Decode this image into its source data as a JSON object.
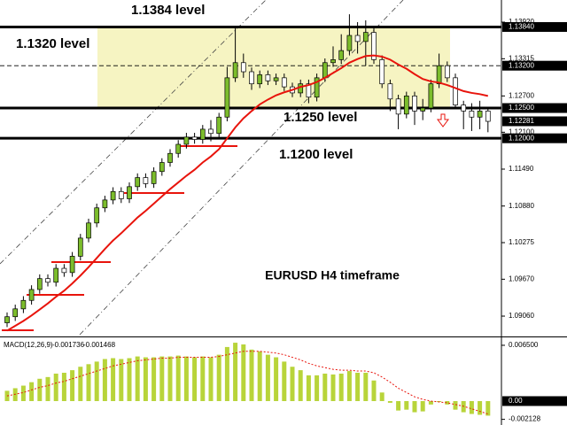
{
  "chart_data": [
    {
      "type": "candlestick",
      "title": "EURUSD H4 timeframe",
      "up_color": "#7cbd2c",
      "down_color": "#ffffff",
      "ma_color": "#e8140c",
      "zone_color": "#f6f4c2",
      "ylim": [
        1.08753,
        1.14286
      ],
      "yticks": [
        {
          "value": 1.1392,
          "label": "1.13920"
        },
        {
          "value": 1.13315,
          "label": "1.13315"
        },
        {
          "value": 1.127,
          "label": "1.12700"
        },
        {
          "value": 1.121,
          "label": "1.12100"
        },
        {
          "value": 1.1149,
          "label": "1.11490"
        },
        {
          "value": 1.1088,
          "label": "1.10880"
        },
        {
          "value": 1.10275,
          "label": "1.10275"
        },
        {
          "value": 1.0967,
          "label": "1.09670"
        },
        {
          "value": 1.0906,
          "label": "1.09060"
        }
      ],
      "price_markers": [
        {
          "value": 1.1384,
          "label": "1.13840"
        },
        {
          "value": 1.132,
          "label": "1.13200"
        },
        {
          "value": 1.125,
          "label": "1.12500"
        },
        {
          "value": 1.12281,
          "label": "1.12281"
        },
        {
          "value": 1.12,
          "label": "1.12000"
        }
      ],
      "levels": [
        {
          "value": 1.1384,
          "label": "1.1384 level",
          "style": "solid"
        },
        {
          "value": 1.132,
          "label": "1.1320 level",
          "style": "dashed"
        },
        {
          "value": 1.125,
          "label": "1.1250 level",
          "style": "solid"
        },
        {
          "value": 1.12,
          "label": "1.1200 level",
          "style": "solid"
        }
      ],
      "ohlc": [
        [
          1.0895,
          1.0912,
          1.0888,
          1.0905
        ],
        [
          1.0905,
          1.0925,
          1.0898,
          1.0918
        ],
        [
          1.0918,
          1.0939,
          1.0911,
          1.0932
        ],
        [
          1.0932,
          1.0957,
          1.0925,
          1.095
        ],
        [
          1.095,
          1.0975,
          1.0943,
          1.0968
        ],
        [
          1.0968,
          1.0975,
          1.0955,
          1.0962
        ],
        [
          1.0962,
          1.0992,
          1.0955,
          1.0985
        ],
        [
          1.0985,
          1.0992,
          1.0971,
          1.0978
        ],
        [
          1.0978,
          1.1012,
          1.0971,
          1.1005
        ],
        [
          1.1005,
          1.1042,
          1.0998,
          1.1035
        ],
        [
          1.1035,
          1.1067,
          1.1028,
          1.106
        ],
        [
          1.106,
          1.1092,
          1.1053,
          1.1085
        ],
        [
          1.1085,
          1.1105,
          1.1078,
          1.1098
        ],
        [
          1.1098,
          1.1119,
          1.1091,
          1.1112
        ],
        [
          1.1112,
          1.1119,
          1.1093,
          1.11
        ],
        [
          1.11,
          1.1127,
          1.1093,
          1.112
        ],
        [
          1.112,
          1.1142,
          1.1113,
          1.1135
        ],
        [
          1.1135,
          1.1142,
          1.1118,
          1.1125
        ],
        [
          1.1125,
          1.1152,
          1.1118,
          1.1145
        ],
        [
          1.1145,
          1.1167,
          1.1138,
          1.116
        ],
        [
          1.116,
          1.1182,
          1.1153,
          1.1175
        ],
        [
          1.1175,
          1.1197,
          1.1168,
          1.119
        ],
        [
          1.119,
          1.1209,
          1.1183,
          1.1202
        ],
        [
          1.1202,
          1.1209,
          1.1191,
          1.1198
        ],
        [
          1.1198,
          1.1222,
          1.1191,
          1.1215
        ],
        [
          1.1215,
          1.123,
          1.1195,
          1.1208
        ],
        [
          1.1208,
          1.1242,
          1.1201,
          1.1235
        ],
        [
          1.1235,
          1.1318,
          1.1228,
          1.13
        ],
        [
          1.13,
          1.1384,
          1.1293,
          1.1325
        ],
        [
          1.1325,
          1.134,
          1.13,
          1.131
        ],
        [
          1.131,
          1.1317,
          1.128,
          1.129
        ],
        [
          1.129,
          1.1312,
          1.1283,
          1.1305
        ],
        [
          1.1305,
          1.1312,
          1.1288,
          1.1295
        ],
        [
          1.1295,
          1.1307,
          1.1288,
          1.13
        ],
        [
          1.13,
          1.1307,
          1.1278,
          1.1285
        ],
        [
          1.1285,
          1.1292,
          1.1268,
          1.1275
        ],
        [
          1.1275,
          1.1297,
          1.1268,
          1.129
        ],
        [
          1.129,
          1.1297,
          1.1258,
          1.1268
        ],
        [
          1.1268,
          1.1307,
          1.1261,
          1.13
        ],
        [
          1.13,
          1.1332,
          1.1293,
          1.1325
        ],
        [
          1.1325,
          1.1352,
          1.1318,
          1.133
        ],
        [
          1.133,
          1.1372,
          1.1323,
          1.1345
        ],
        [
          1.1345,
          1.1405,
          1.1338,
          1.137
        ],
        [
          1.137,
          1.1392,
          1.134,
          1.136
        ],
        [
          1.136,
          1.1395,
          1.132,
          1.1375
        ],
        [
          1.1375,
          1.1382,
          1.1323,
          1.133
        ],
        [
          1.133,
          1.1337,
          1.1283,
          1.129
        ],
        [
          1.129,
          1.1297,
          1.1245,
          1.1265
        ],
        [
          1.1265,
          1.1272,
          1.1215,
          1.124
        ],
        [
          1.124,
          1.1277,
          1.1233,
          1.127
        ],
        [
          1.127,
          1.1277,
          1.1222,
          1.1245
        ],
        [
          1.1245,
          1.1265,
          1.123,
          1.125
        ],
        [
          1.125,
          1.1297,
          1.1243,
          1.129
        ],
        [
          1.129,
          1.134,
          1.1283,
          1.132
        ],
        [
          1.132,
          1.1327,
          1.1293,
          1.13
        ],
        [
          1.13,
          1.1307,
          1.1248,
          1.1255
        ],
        [
          1.1255,
          1.1262,
          1.1215,
          1.1245
        ],
        [
          1.1245,
          1.1258,
          1.1212,
          1.1235
        ],
        [
          1.1235,
          1.1262,
          1.1215,
          1.1245
        ],
        [
          1.1245,
          1.1252,
          1.121,
          1.1228
        ]
      ],
      "ma": [
        1.0882,
        1.089,
        1.0898,
        1.0907,
        1.0917,
        1.0927,
        1.0938,
        1.0948,
        1.096,
        1.0973,
        1.0987,
        1.1002,
        1.1017,
        1.1031,
        1.1043,
        1.1056,
        1.1069,
        1.108,
        1.1092,
        1.1104,
        1.1116,
        1.1127,
        1.1138,
        1.1148,
        1.116,
        1.117,
        1.1182,
        1.12,
        1.1218,
        1.1233,
        1.1245,
        1.1256,
        1.1264,
        1.1271,
        1.1276,
        1.128,
        1.1285,
        1.1288,
        1.1293,
        1.13,
        1.1308,
        1.1316,
        1.1325,
        1.1331,
        1.1336,
        1.1337,
        1.1335,
        1.133,
        1.1322,
        1.1315,
        1.1306,
        1.1298,
        1.1294,
        1.1292,
        1.1288,
        1.1283,
        1.1278,
        1.1275,
        1.1273,
        1.127
      ]
    },
    {
      "type": "macd",
      "indicator": "MACD(12,26,9)",
      "macd_value": -0.001736,
      "signal_value": -0.001468,
      "hist_color": "#b8d43a",
      "signal_color": "#e8140c",
      "ylim": [
        -0.00258,
        0.00722
      ],
      "yticks": [
        {
          "value": 0.0065,
          "label": "0.006500"
        },
        {
          "value": -0.002128,
          "label": "-0.002128"
        }
      ],
      "zero_marker": {
        "value": 0,
        "label": "0.00"
      },
      "histogram": [
        0.0012,
        0.0015,
        0.0018,
        0.0022,
        0.0026,
        0.0028,
        0.0032,
        0.0033,
        0.0036,
        0.004,
        0.0043,
        0.0046,
        0.0049,
        0.005,
        0.0049,
        0.005,
        0.0052,
        0.0051,
        0.0051,
        0.0052,
        0.0052,
        0.0053,
        0.0052,
        0.0051,
        0.0052,
        0.0051,
        0.0054,
        0.0063,
        0.0068,
        0.0066,
        0.006,
        0.0058,
        0.0054,
        0.0051,
        0.0046,
        0.004,
        0.0036,
        0.003,
        0.003,
        0.0032,
        0.0031,
        0.0032,
        0.0035,
        0.0033,
        0.0033,
        0.0024,
        0.001,
        -0.0002,
        -0.0011,
        -0.001,
        -0.0013,
        -0.0012,
        -0.0004,
        -0.0001,
        -0.0004,
        -0.001,
        -0.0013,
        -0.0015,
        -0.0016,
        -0.0017
      ],
      "signal": [
        0.0006,
        0.0008,
        0.001,
        0.0013,
        0.0016,
        0.0018,
        0.0021,
        0.0023,
        0.0026,
        0.0029,
        0.0032,
        0.0035,
        0.0038,
        0.0041,
        0.0043,
        0.0045,
        0.0047,
        0.0048,
        0.0049,
        0.005,
        0.005,
        0.0051,
        0.0051,
        0.0051,
        0.0051,
        0.0051,
        0.0052,
        0.0054,
        0.0056,
        0.0058,
        0.0058,
        0.0058,
        0.0057,
        0.0056,
        0.0054,
        0.0051,
        0.0048,
        0.0044,
        0.0041,
        0.0039,
        0.0037,
        0.0036,
        0.0036,
        0.0035,
        0.0035,
        0.0033,
        0.0028,
        0.0022,
        0.0015,
        0.001,
        0.0005,
        0.0002,
        0,
        -0.0001,
        -0.0002,
        -0.0004,
        -0.0006,
        -0.0009,
        -0.0012,
        -0.0015
      ]
    }
  ]
}
